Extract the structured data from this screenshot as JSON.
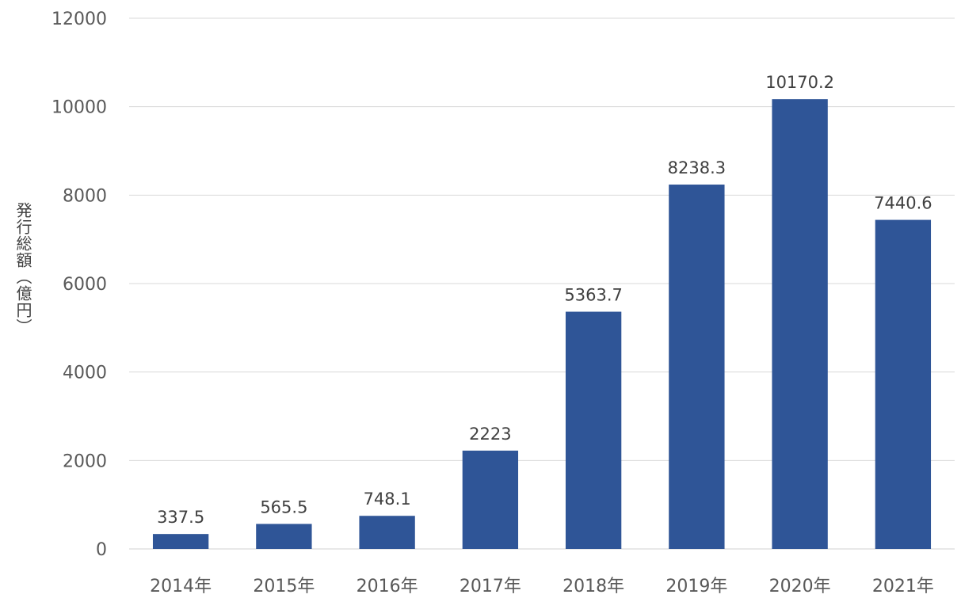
{
  "chart_data": {
    "type": "bar",
    "categories": [
      "2014年",
      "2015年",
      "2016年",
      "2017年",
      "2018年",
      "2019年",
      "2020年",
      "2021年"
    ],
    "values": [
      337.5,
      565.5,
      748.1,
      2223,
      5363.7,
      8238.3,
      10170.2,
      7440.6
    ],
    "value_labels": [
      "337.5",
      "565.5",
      "748.1",
      "2223",
      "5363.7",
      "8238.3",
      "10170.2",
      "7440.6"
    ],
    "title": "",
    "xlabel": "",
    "ylabel": "発行総額（億円）",
    "ylim": [
      0,
      12000
    ],
    "yticks": [
      "0",
      "2000",
      "4000",
      "6000",
      "8000",
      "10000",
      "12000"
    ],
    "grid": true,
    "legend": "none",
    "bar_color": "#2F5597"
  }
}
